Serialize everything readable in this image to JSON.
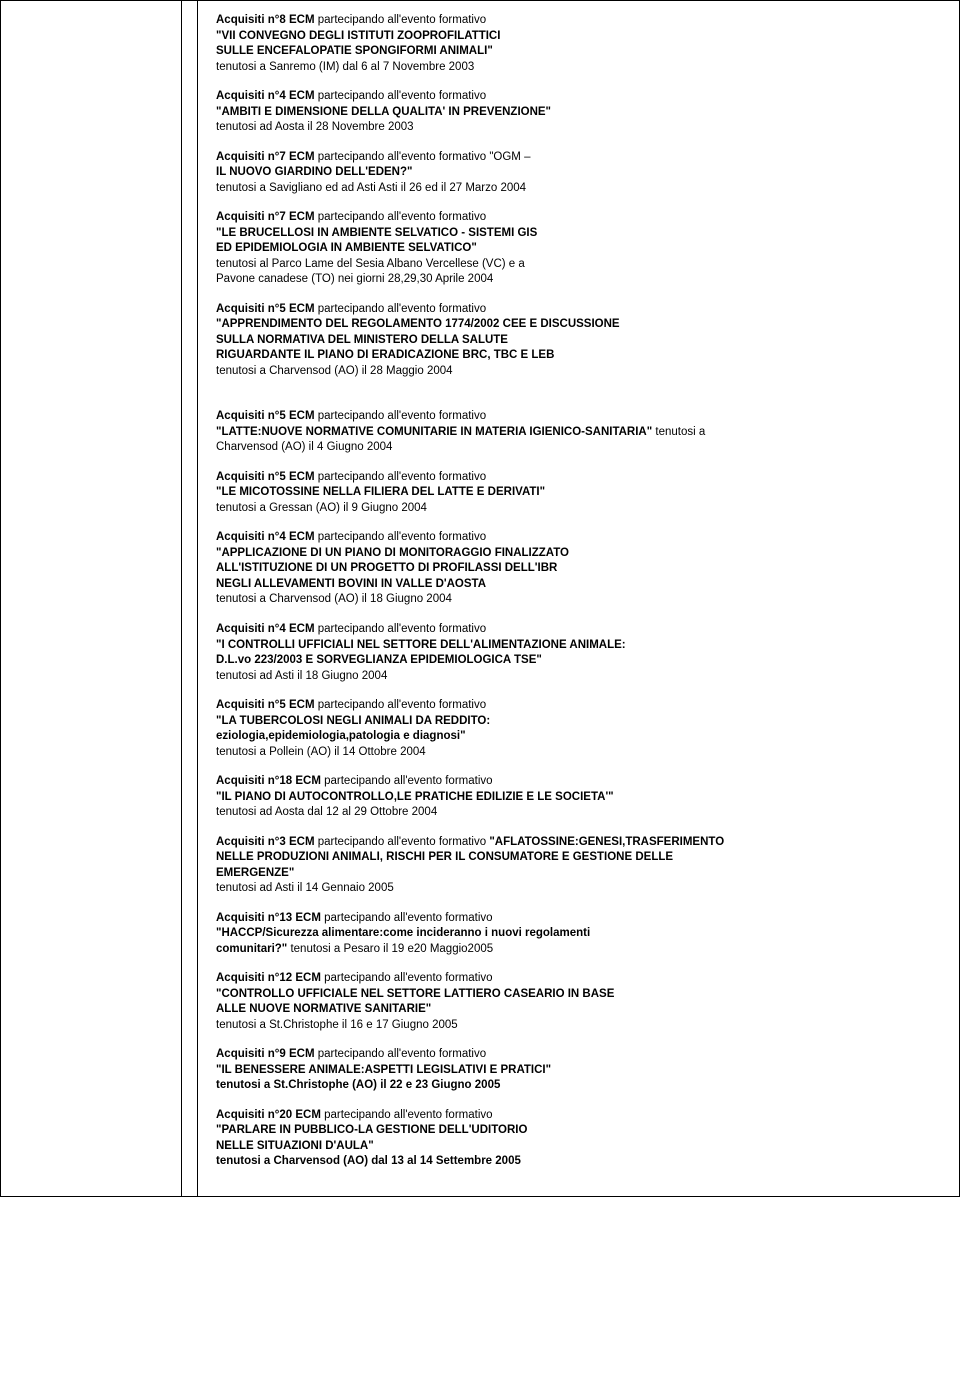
{
  "entries": [
    {
      "prefix": "Acquisiti n°8 ECM",
      "mid": " partecipando all'evento formativo",
      "title_lines": [
        "\"VII CONVEGNO DEGLI ISTITUTI ZOOPROFILATTICI",
        "SULLE ENCEFALOPATIE SPONGIFORMI  ANIMALI\""
      ],
      "loc": "tenutosi a Sanremo (IM) dal 6 al 7 Novembre 2003"
    },
    {
      "prefix": "Acquisiti n°4 ECM",
      "mid": " partecipando all'evento formativo",
      "title_lines": [
        "\"AMBITI E DIMENSIONE DELLA QUALITA' IN PREVENZIONE\""
      ],
      "loc": "tenutosi ad Aosta il 28 Novembre 2003"
    },
    {
      "prefix": "Acquisiti n°7 ECM",
      "mid": " partecipando all'evento formativo \"OGM –",
      "title_lines": [
        "IL NUOVO GIARDINO DELL'EDEN?\""
      ],
      "loc": "tenutosi a Savigliano ed ad Asti Asti il 26 ed il 27 Marzo 2004"
    },
    {
      "prefix": "Acquisiti n°7 ECM",
      "mid": " partecipando all'evento formativo",
      "title_lines": [
        "\"LE BRUCELLOSI IN AMBIENTE SELVATICO - SISTEMI GIS",
        "ED EPIDEMIOLOGIA IN AMBIENTE SELVATICO\""
      ],
      "loc": " tenutosi al Parco Lame del Sesia Albano Vercellese (VC) e a\n Pavone canadese (TO) nei giorni 28,29,30 Aprile 2004"
    },
    {
      "prefix": "Acquisiti n°5 ECM",
      "mid": " partecipando all'evento formativo",
      "title_lines": [
        "\"APPRENDIMENTO DEL REGOLAMENTO 1774/2002 CEE E DISCUSSIONE",
        "SULLA NORMATIVA DEL MINISTERO DELLA SALUTE",
        "RIGUARDANTE IL PIANO DI ERADICAZIONE BRC, TBC E LEB"
      ],
      "loc": "tenutosi a Charvensod (AO) il 28 Maggio 2004",
      "gap_after": true
    },
    {
      "prefix": "Acquisiti n°5 ECM",
      "mid": " partecipando all'evento formativo",
      "title_inline": "\"LATTE:NUOVE NORMATIVE COMUNITARIE IN MATERIA IGIENICO-SANITARIA\"",
      "loc_inline": " tenutosi a",
      "loc": "Charvensod (AO) il 4 Giugno 2004"
    },
    {
      "prefix": "Acquisiti n°5 ECM",
      "mid": " partecipando all'evento formativo",
      "title_lines": [
        "\"LE MICOTOSSINE NELLA FILIERA DEL LATTE E DERIVATI\""
      ],
      "loc": "tenutosi a Gressan (AO) il 9 Giugno 2004"
    },
    {
      "prefix": "Acquisiti n°4 ECM",
      "mid": " partecipando all'evento formativo",
      "title_lines": [
        "\"APPLICAZIONE DI UN PIANO DI MONITORAGGIO FINALIZZATO",
        "ALL'ISTITUZIONE DI UN PROGETTO DI PROFILASSI DELL'IBR",
        "NEGLI ALLEVAMENTI BOVINI IN VALLE D'AOSTA"
      ],
      "loc": "tenutosi a Charvensod (AO) il 18 Giugno 2004"
    },
    {
      "prefix": "Acquisiti n°4 ECM",
      "mid": " partecipando all'evento formativo",
      "title_lines": [
        "\"I CONTROLLI UFFICIALI NEL SETTORE DELL'ALIMENTAZIONE ANIMALE:",
        "D.L.vo 223/2003 E SORVEGLIANZA EPIDEMIOLOGICA TSE\""
      ],
      "loc": " tenutosi ad Asti il 18 Giugno 2004"
    },
    {
      "prefix": "Acquisiti n°5 ECM",
      "mid": " partecipando all'evento formativo",
      "title_lines": [
        "\"LA TUBERCOLOSI NEGLI ANIMALI DA REDDITO:",
        "eziologia,epidemiologia,patologia e diagnosi\""
      ],
      "loc": "tenutosi a Pollein (AO) il 14 Ottobre 2004"
    },
    {
      "prefix": "Acquisiti n°18 ECM",
      "mid": " partecipando all'evento formativo",
      "title_lines": [
        "\"IL PIANO DI AUTOCONTROLLO,LE PRATICHE EDILIZIE E LE SOCIETA'\""
      ],
      "loc": " tenutosi ad Aosta dal 12 al 29 Ottobre 2004"
    },
    {
      "prefix": "Acquisiti n°3 ECM",
      "mid": " partecipando all'evento formativo ",
      "title_inline_bold": "\"AFLATOSSINE:GENESI,TRASFERIMENTO",
      "title_lines": [
        " NELLE PRODUZIONI ANIMALI, RISCHI PER IL CONSUMATORE E GESTIONE DELLE",
        "EMERGENZE\""
      ],
      "loc": "tenutosi ad Asti il 14 Gennaio 2005"
    },
    {
      "prefix": "Acquisiti n°13 ECM",
      "mid": " partecipando all'evento formativo",
      "title_lines": [
        "\"HACCP/Sicurezza alimentare:come incideranno i nuovi regolamenti",
        "comunitari?\""
      ],
      "loc_inline_after": " tenutosi a Pesaro il 19 e20 Maggio2005"
    },
    {
      "prefix": "Acquisiti n°12 ECM",
      "mid": " partecipando all'evento formativo",
      "title_lines": [
        "\"CONTROLLO UFFICIALE NEL SETTORE LATTIERO CASEARIO IN BASE",
        "ALLE NUOVE NORMATIVE SANITARIE\""
      ],
      "loc": "tenutosi a St.Christophe il 16 e 17 Giugno 2005"
    },
    {
      "prefix": "Acquisiti n°9 ECM",
      "mid": " partecipando all'evento formativo",
      "title_lines": [
        "\"IL BENESSERE ANIMALE:ASPETTI LEGISLATIVI E PRATICI\"",
        "tenutosi a St.Christophe (AO) il 22 e 23 Giugno 2005"
      ],
      "all_bold": true
    },
    {
      "prefix": "Acquisiti n°20 ECM",
      "mid": " partecipando all'evento formativo",
      "title_lines": [
        "\"PARLARE IN PUBBLICO-LA GESTIONE DELL'UDITORIO",
        "NELLE SITUAZIONI D'AULA\"",
        " tenutosi a Charvensod (AO)  dal 13 al 14 Settembre 2005"
      ],
      "all_bold": true
    }
  ]
}
